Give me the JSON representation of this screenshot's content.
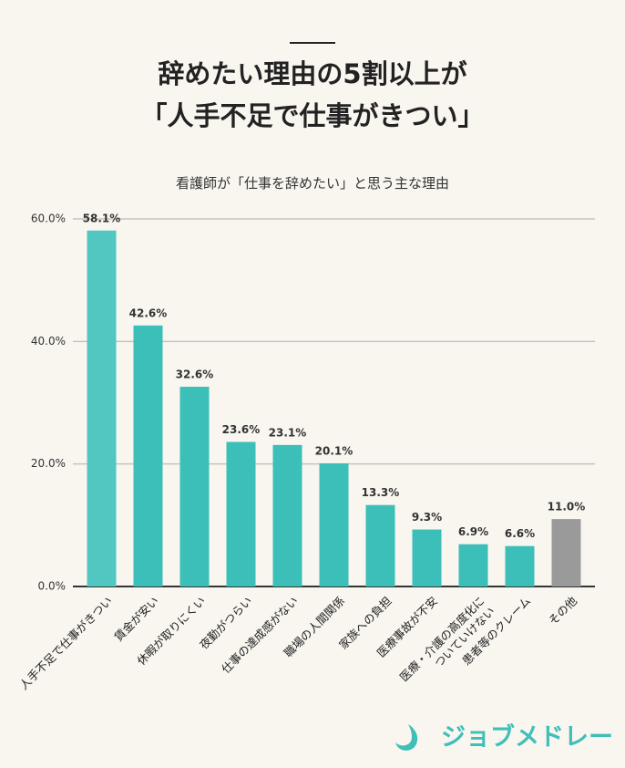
{
  "chart_data": {
    "type": "bar",
    "title": "辞めたい理由の5割以上が\n「人手不足で仕事がきつい」",
    "subtitle": "看護師が「仕事を辞めたい」と思う主な理由",
    "categories": [
      "人手不足で仕事がきつい",
      "賃金が安い",
      "休暇が取りにくい",
      "夜勤がつらい",
      "仕事の達成感がない",
      "職場の人間関係",
      "家族への負担",
      "医療事故が不安",
      "医療・介護の高度化に\nついていけない",
      "患者等のクレーム",
      "その他"
    ],
    "values": [
      58.1,
      42.6,
      32.6,
      23.6,
      23.1,
      20.1,
      13.3,
      9.3,
      6.9,
      6.6,
      11.0
    ],
    "value_labels": [
      "58.1%",
      "42.6%",
      "32.6%",
      "23.6%",
      "23.1%",
      "20.1%",
      "13.3%",
      "9.3%",
      "6.9%",
      "6.6%",
      "11.0%"
    ],
    "colors": [
      "#52c7c1",
      "#3bbfb8",
      "#3bbfb8",
      "#3bbfb8",
      "#3bbfb8",
      "#3bbfb8",
      "#3bbfb8",
      "#3bbfb8",
      "#3bbfb8",
      "#3bbfb8",
      "#9a9a9a"
    ],
    "ylim": [
      0,
      60
    ],
    "yticks": [
      {
        "value": 0,
        "label": "0.0%"
      },
      {
        "value": 20,
        "label": "20.0%"
      },
      {
        "value": 40,
        "label": "40.0%"
      },
      {
        "value": 60,
        "label": "60.0%"
      }
    ],
    "grid": true
  },
  "logo": "ジョブメドレー"
}
